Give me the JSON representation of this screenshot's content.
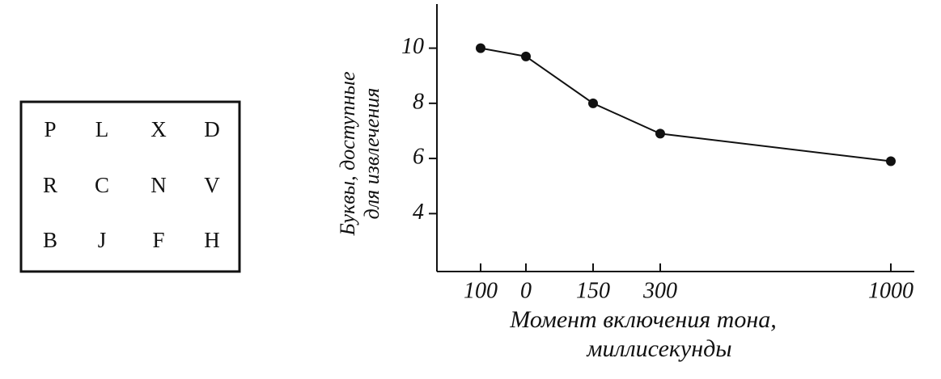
{
  "letter_grid": {
    "rows": [
      [
        "P",
        "L",
        "X",
        "D"
      ],
      [
        "R",
        "C",
        "N",
        "V"
      ],
      [
        "B",
        "J",
        "F",
        "H"
      ]
    ]
  },
  "chart_data": {
    "type": "line",
    "y_label_lines": [
      "Буквы, доступные",
      "для извлечения"
    ],
    "x_label_lines": [
      "Момент включения тона,",
      "миллисекунды"
    ],
    "categories": [
      "100",
      "0",
      "150",
      "300",
      "1000"
    ],
    "values": [
      10,
      9.7,
      8,
      6.9,
      5.9
    ],
    "color": "#111111",
    "ylim": [
      1.9,
      11.6
    ],
    "yticks": [
      4,
      6,
      8,
      10
    ]
  }
}
